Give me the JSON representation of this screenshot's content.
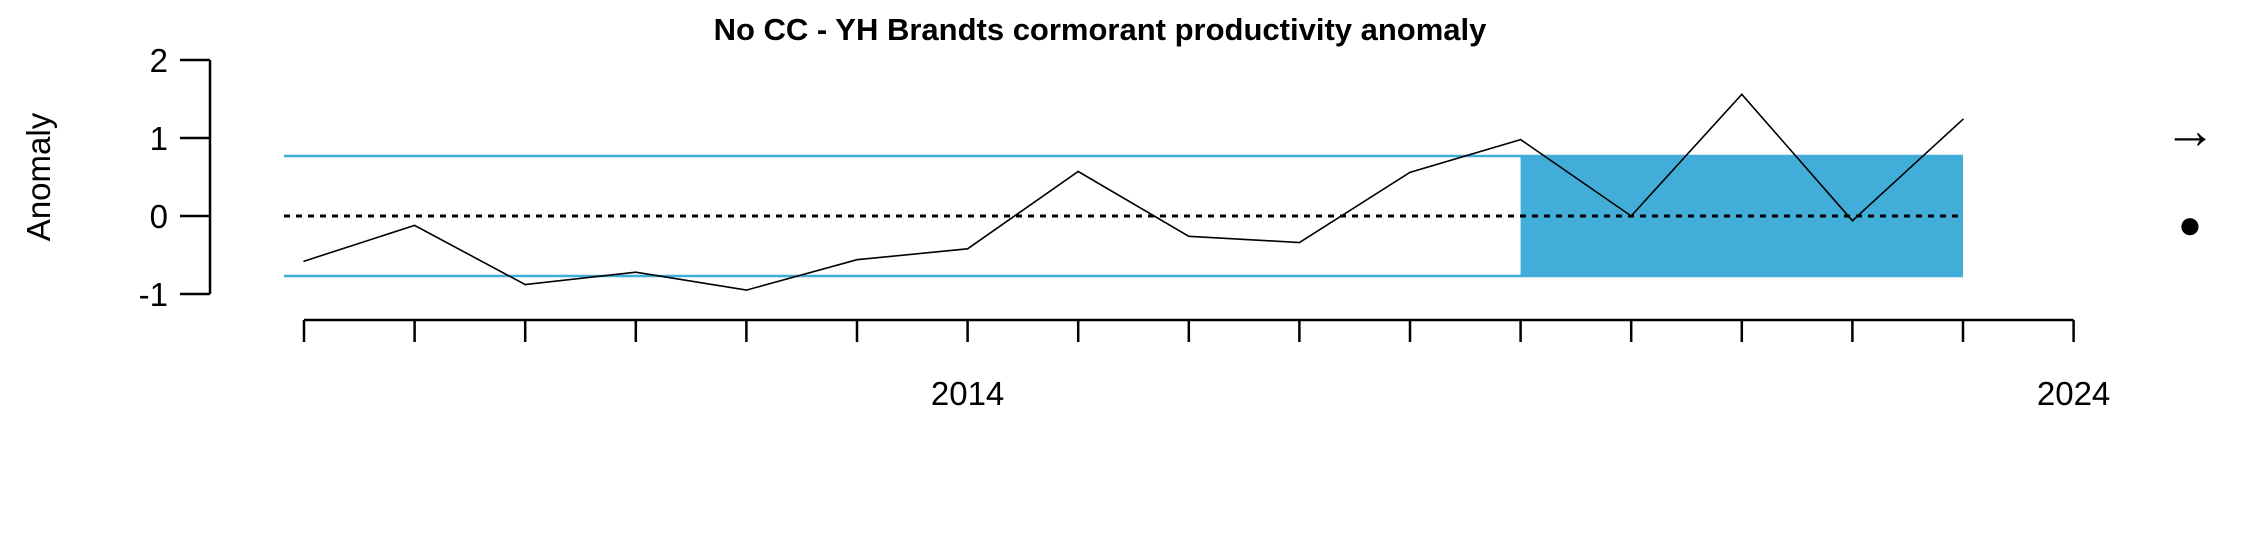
{
  "chart_data": {
    "type": "line",
    "title": "No CC - YH  Brandts cormorant productivity anomaly",
    "xlabel": "",
    "ylabel": "Anomaly",
    "x": [
      2008,
      2009,
      2010,
      2011,
      2012,
      2013,
      2014,
      2015,
      2016,
      2017,
      2018,
      2019,
      2020,
      2021,
      2022,
      2023
    ],
    "series": [
      {
        "values": [
          -0.58,
          -0.12,
          -0.88,
          -0.72,
          -0.95,
          -0.56,
          -0.42,
          0.57,
          -0.26,
          -0.34,
          0.56,
          0.98,
          0.0,
          1.56,
          -0.06,
          1.24
        ]
      }
    ],
    "xlim": [
      2008,
      2024
    ],
    "ylim": [
      -1,
      2
    ],
    "x_tick_labels": [
      "2014",
      "2024"
    ],
    "y_tick_labels": [
      "-1",
      "0",
      "1",
      "2"
    ],
    "mean": 0,
    "sd_band": [
      -0.77,
      0.77
    ],
    "highlight_range": [
      2019,
      2023
    ],
    "grid": false,
    "legend": "none",
    "trend_symbol": "→",
    "mean_symbol": "●",
    "colors": {
      "band": "#41add8",
      "series": "#000000",
      "mean_line": "#000000"
    }
  }
}
